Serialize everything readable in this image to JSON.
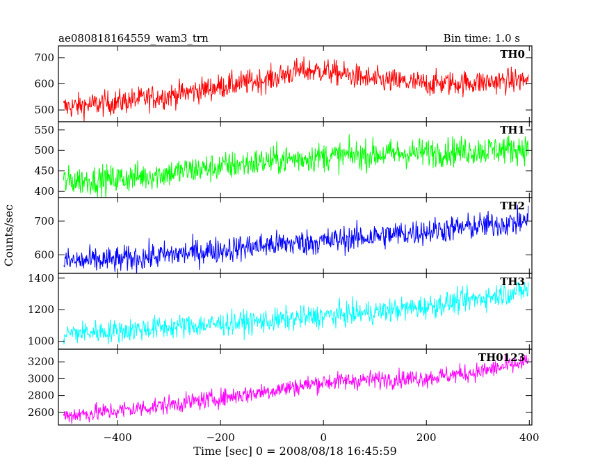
{
  "chart_data": {
    "type": "line",
    "title": "ae080818164559_wam3_trn",
    "bin_time": "Bin time: 1.0 s",
    "xlabel": "Time [sec] 0 = 2008/08/18 16:45:59",
    "ylabel": "Counts/sec",
    "xlim": [
      -515,
      405
    ],
    "x_ticks": [
      -400,
      -200,
      0,
      200,
      400
    ],
    "x_tick_labels": [
      "−400",
      "−200",
      "0",
      "200",
      "400"
    ],
    "panels": [
      {
        "name": "TH0",
        "color": "#ff0000",
        "ylim": [
          455,
          745
        ],
        "y_ticks": [
          500,
          600,
          700
        ],
        "y_tick_labels": [
          "500",
          "600",
          "700"
        ],
        "trend_x": [
          -505,
          -400,
          -300,
          -200,
          -100,
          -50,
          0,
          100,
          200,
          300,
          400
        ],
        "trend_y": [
          510,
          530,
          555,
          590,
          620,
          650,
          650,
          615,
          600,
          605,
          615
        ],
        "noise": 24
      },
      {
        "name": "TH1",
        "color": "#00ff00",
        "ylim": [
          385,
          570
        ],
        "y_ticks": [
          400,
          450,
          500,
          550
        ],
        "y_tick_labels": [
          "400",
          "450",
          "500",
          "550"
        ],
        "trend_x": [
          -505,
          -400,
          -300,
          -200,
          -100,
          0,
          100,
          200,
          300,
          400
        ],
        "trend_y": [
          425,
          430,
          445,
          460,
          475,
          485,
          490,
          495,
          500,
          505
        ],
        "noise": 18
      },
      {
        "name": "TH2",
        "color": "#0000ff",
        "ylim": [
          545,
          770
        ],
        "y_ticks": [
          600,
          700
        ],
        "y_tick_labels": [
          "600",
          "700"
        ],
        "trend_x": [
          -505,
          -400,
          -300,
          -200,
          -100,
          0,
          100,
          200,
          300,
          400
        ],
        "trend_y": [
          580,
          585,
          600,
          615,
          630,
          640,
          655,
          670,
          685,
          700
        ],
        "noise": 20
      },
      {
        "name": "TH3",
        "color": "#00ffff",
        "ylim": [
          950,
          1430
        ],
        "y_ticks": [
          1000,
          1200,
          1400
        ],
        "y_tick_labels": [
          "1000",
          "1200",
          "1400"
        ],
        "trend_x": [
          -505,
          -400,
          -300,
          -200,
          -100,
          0,
          100,
          200,
          300,
          400
        ],
        "trend_y": [
          1050,
          1065,
          1090,
          1110,
          1130,
          1160,
          1185,
          1220,
          1270,
          1330
        ],
        "noise": 38
      },
      {
        "name": "TH0123",
        "color": "#ff00ff",
        "ylim": [
          2450,
          3350
        ],
        "y_ticks": [
          2600,
          2800,
          3000,
          3200
        ],
        "y_tick_labels": [
          "2600",
          "2800",
          "3000",
          "3200"
        ],
        "trend_x": [
          -505,
          -400,
          -300,
          -200,
          -100,
          0,
          100,
          200,
          300,
          400
        ],
        "trend_y": [
          2560,
          2620,
          2690,
          2770,
          2860,
          2960,
          2990,
          3010,
          3080,
          3200
        ],
        "noise": 55
      }
    ]
  }
}
